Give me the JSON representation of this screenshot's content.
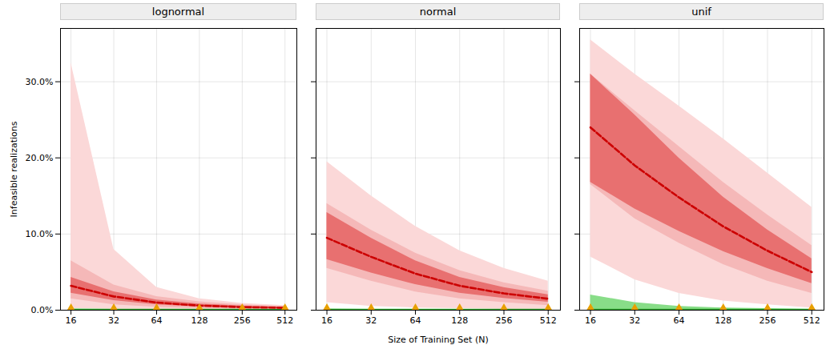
{
  "chart_data": [
    {
      "type": "area",
      "title": "lognormal",
      "ylabel": "Infeasible realizations",
      "x": [
        16,
        32,
        64,
        128,
        256,
        512
      ],
      "log": "x",
      "grid": true,
      "xlim": [
        13.5,
        620
      ],
      "xticks": [
        16,
        32,
        64,
        128,
        256,
        512
      ],
      "ylim": [
        0.0,
        0.37
      ],
      "yticks": [
        {
          "value": 0.0,
          "label": "0.0%"
        },
        {
          "value": 0.1,
          "label": "10.0%"
        },
        {
          "value": 0.2,
          "label": "20.0%"
        },
        {
          "value": 0.3,
          "label": "30.0%"
        }
      ],
      "series": [
        {
          "type": "band",
          "color": "#fbd8d8",
          "lower": [
            0.002,
            0.001,
            0.0005,
            0.0002,
            0.0001,
            0.0001
          ],
          "upper": [
            0.325,
            0.08,
            0.03,
            0.015,
            0.009,
            0.006
          ]
        },
        {
          "type": "band",
          "color": "#f5b8b8",
          "lower": [
            0.015,
            0.007,
            0.004,
            0.002,
            0.001,
            0.001
          ],
          "upper": [
            0.065,
            0.033,
            0.018,
            0.011,
            0.007,
            0.005
          ]
        },
        {
          "type": "band",
          "color": "#e87070",
          "lower": [
            0.0224,
            0.0126,
            0.007,
            0.0042,
            0.0028,
            0.0021
          ],
          "upper": [
            0.0432,
            0.0243,
            0.0135,
            0.0081,
            0.0054,
            0.00405
          ]
        },
        {
          "type": "band",
          "color": "#88dd88",
          "lower": [
            0.0,
            0.0,
            0.0,
            0.0,
            0.0,
            0.0
          ],
          "upper": [
            0.0015,
            0.001,
            0.001,
            0.001,
            0.001,
            0.001
          ]
        },
        {
          "type": "line",
          "color": "#33aa33",
          "line_style": "solid",
          "values": [
            0.001,
            0.001,
            0.001,
            0.001,
            0.001,
            0.001
          ]
        },
        {
          "type": "line",
          "color": "#cc0000",
          "line_style": "dashed",
          "values": [
            0.032,
            0.018,
            0.01,
            0.006,
            0.004,
            0.003
          ]
        },
        {
          "type": "scatter",
          "color": "#e8a000",
          "marker": "triangle",
          "values": [
            0.0008,
            0.0008,
            0.0008,
            0.0008,
            0.0008,
            0.0008
          ]
        }
      ]
    },
    {
      "type": "area",
      "title": "normal",
      "xlabel": "Size of Training Set (N)",
      "tick_labels": "x",
      "x": [
        16,
        32,
        64,
        128,
        256,
        512
      ],
      "log": "x",
      "grid": true,
      "xlim": [
        13.5,
        620
      ],
      "xticks": [
        16,
        32,
        64,
        128,
        256,
        512
      ],
      "ylim": [
        0.0,
        0.37
      ],
      "yticks": [
        0.0,
        0.1,
        0.2,
        0.3
      ],
      "series": [
        {
          "type": "band",
          "color": "#fbd8d8",
          "lower": [
            0.01,
            0.005,
            0.003,
            0.002,
            0.001,
            0.0005
          ],
          "upper": [
            0.195,
            0.15,
            0.11,
            0.078,
            0.055,
            0.038
          ]
        },
        {
          "type": "band",
          "color": "#f5b8b8",
          "lower": [
            0.055,
            0.038,
            0.024,
            0.015,
            0.01,
            0.006
          ],
          "upper": [
            0.14,
            0.105,
            0.075,
            0.052,
            0.036,
            0.025
          ]
        },
        {
          "type": "band",
          "color": "#e87070",
          "lower": [
            0.0665,
            0.049,
            0.0336,
            0.0224,
            0.0154,
            0.0105
          ],
          "upper": [
            0.12825,
            0.0945,
            0.0648,
            0.0432,
            0.0297,
            0.02025
          ]
        },
        {
          "type": "band",
          "color": "#88dd88",
          "lower": [
            0.0,
            0.0,
            0.0,
            0.0,
            0.0,
            0.0
          ],
          "upper": [
            0.0015,
            0.001,
            0.001,
            0.001,
            0.001,
            0.001
          ]
        },
        {
          "type": "line",
          "color": "#33aa33",
          "line_style": "solid",
          "values": [
            0.001,
            0.001,
            0.001,
            0.001,
            0.001,
            0.001
          ]
        },
        {
          "type": "line",
          "color": "#cc0000",
          "line_style": "dashed",
          "values": [
            0.095,
            0.07,
            0.048,
            0.032,
            0.022,
            0.015
          ]
        },
        {
          "type": "scatter",
          "color": "#e8a000",
          "marker": "triangle",
          "values": [
            0.0008,
            0.0008,
            0.0008,
            0.0008,
            0.0008,
            0.0008
          ]
        }
      ]
    },
    {
      "type": "area",
      "title": "unif",
      "tick_labels": "x",
      "x": [
        16,
        32,
        64,
        128,
        256,
        512
      ],
      "log": "x",
      "grid": true,
      "xlim": [
        13.5,
        620
      ],
      "xticks": [
        16,
        32,
        64,
        128,
        256,
        512
      ],
      "ylim": [
        0.0,
        0.37
      ],
      "yticks": [
        0.0,
        0.1,
        0.2,
        0.3
      ],
      "series": [
        {
          "type": "band",
          "color": "#fbd8d8",
          "lower": [
            0.07,
            0.04,
            0.022,
            0.012,
            0.007,
            0.003
          ],
          "upper": [
            0.355,
            0.31,
            0.268,
            0.225,
            0.18,
            0.135
          ]
        },
        {
          "type": "band",
          "color": "#f5b8b8",
          "lower": [
            0.165,
            0.12,
            0.088,
            0.06,
            0.038,
            0.022
          ],
          "upper": [
            0.31,
            0.262,
            0.215,
            0.168,
            0.125,
            0.085
          ]
        },
        {
          "type": "band",
          "color": "#e87070",
          "lower": [
            0.168,
            0.133,
            0.1036,
            0.077,
            0.0546,
            0.035
          ],
          "upper": [
            0.31,
            0.2565,
            0.1998,
            0.1485,
            0.1053,
            0.0675
          ]
        },
        {
          "type": "band",
          "color": "#88dd88",
          "lower": [
            0.0,
            0.0,
            0.0,
            0.0,
            0.0,
            0.0
          ],
          "upper": [
            0.02,
            0.01,
            0.005,
            0.003,
            0.002,
            0.001
          ]
        },
        {
          "type": "line",
          "color": "#33aa33",
          "line_style": "solid",
          "values": [
            0.001,
            0.001,
            0.001,
            0.001,
            0.001,
            0.001
          ]
        },
        {
          "type": "line",
          "color": "#cc0000",
          "line_style": "dashed",
          "values": [
            0.24,
            0.19,
            0.148,
            0.11,
            0.078,
            0.05
          ]
        },
        {
          "type": "scatter",
          "color": "#e8a000",
          "marker": "triangle",
          "values": [
            0.0008,
            0.0008,
            0.0008,
            0.0008,
            0.0008,
            0.0008
          ]
        }
      ]
    }
  ]
}
